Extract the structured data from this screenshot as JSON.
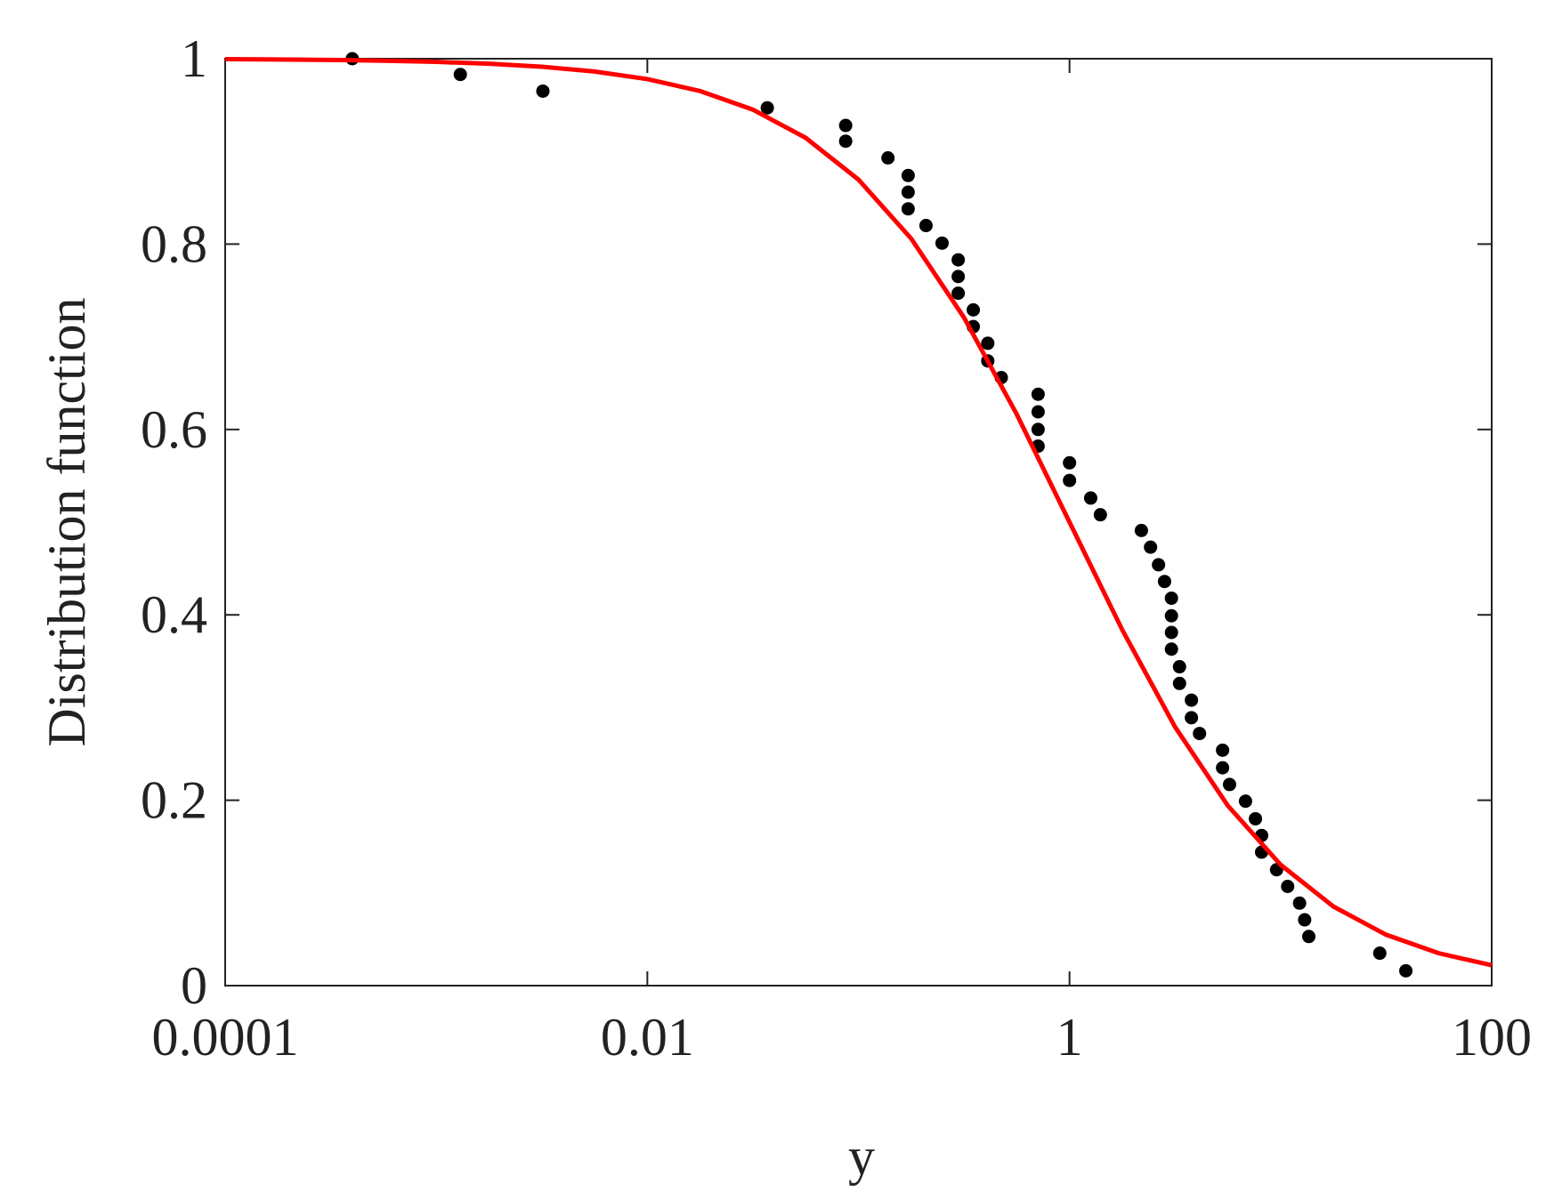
{
  "chart_data": {
    "type": "scatter",
    "xlabel": "y",
    "ylabel": "Distribution function",
    "xscale": "log",
    "grid": false,
    "xlim": [
      0.0001,
      100
    ],
    "xticks": [
      0.0001,
      0.01,
      1,
      100
    ],
    "ylim": [
      0,
      1
    ],
    "yticks": [
      0,
      0.2,
      0.4,
      0.6,
      0.8,
      1
    ],
    "series": [
      {
        "type": "scatter",
        "color": "#000000",
        "x": [
          0.0004,
          0.0013,
          0.0032,
          0.037,
          0.087,
          0.087,
          0.138,
          0.172,
          0.172,
          0.172,
          0.209,
          0.249,
          0.297,
          0.297,
          0.297,
          0.35,
          0.35,
          0.41,
          0.41,
          0.475,
          0.71,
          0.71,
          0.71,
          0.71,
          1.0,
          1.0,
          1.26,
          1.4,
          2.19,
          2.42,
          2.64,
          2.82,
          3.04,
          3.04,
          3.04,
          3.04,
          3.32,
          3.32,
          3.78,
          3.78,
          4.13,
          5.31,
          5.31,
          5.73,
          6.82,
          7.6,
          8.13,
          8.13,
          9.57,
          10.8,
          12.3,
          13.0,
          13.6,
          29.5,
          39.2
        ],
        "values": [
          1.0,
          0.983,
          0.965,
          0.947,
          0.928,
          0.911,
          0.893,
          0.874,
          0.856,
          0.838,
          0.82,
          0.801,
          0.783,
          0.765,
          0.747,
          0.729,
          0.711,
          0.693,
          0.674,
          0.656,
          0.638,
          0.619,
          0.6,
          0.582,
          0.564,
          0.545,
          0.526,
          0.508,
          0.491,
          0.473,
          0.454,
          0.436,
          0.418,
          0.399,
          0.381,
          0.363,
          0.344,
          0.326,
          0.308,
          0.289,
          0.272,
          0.254,
          0.235,
          0.217,
          0.199,
          0.18,
          0.162,
          0.144,
          0.125,
          0.107,
          0.089,
          0.071,
          0.053,
          0.035,
          0.016
        ]
      },
      {
        "type": "line",
        "color": "#ff0000",
        "x": [
          0.0001,
          0.000178,
          0.000316,
          0.000562,
          0.001,
          0.00178,
          0.00316,
          0.00562,
          0.01,
          0.0178,
          0.0316,
          0.0562,
          0.1,
          0.178,
          0.316,
          0.562,
          1,
          1.78,
          3.16,
          5.62,
          10,
          17.8,
          31.6,
          56.2,
          100
        ],
        "values": [
          0.9995,
          0.9992,
          0.9987,
          0.9979,
          0.9966,
          0.9946,
          0.9914,
          0.9862,
          0.978,
          0.9651,
          0.9451,
          0.9147,
          0.8696,
          0.8058,
          0.7209,
          0.6165,
          0.5,
          0.3836,
          0.2792,
          0.1942,
          0.1304,
          0.0853,
          0.0549,
          0.0349,
          0.022
        ]
      }
    ]
  }
}
